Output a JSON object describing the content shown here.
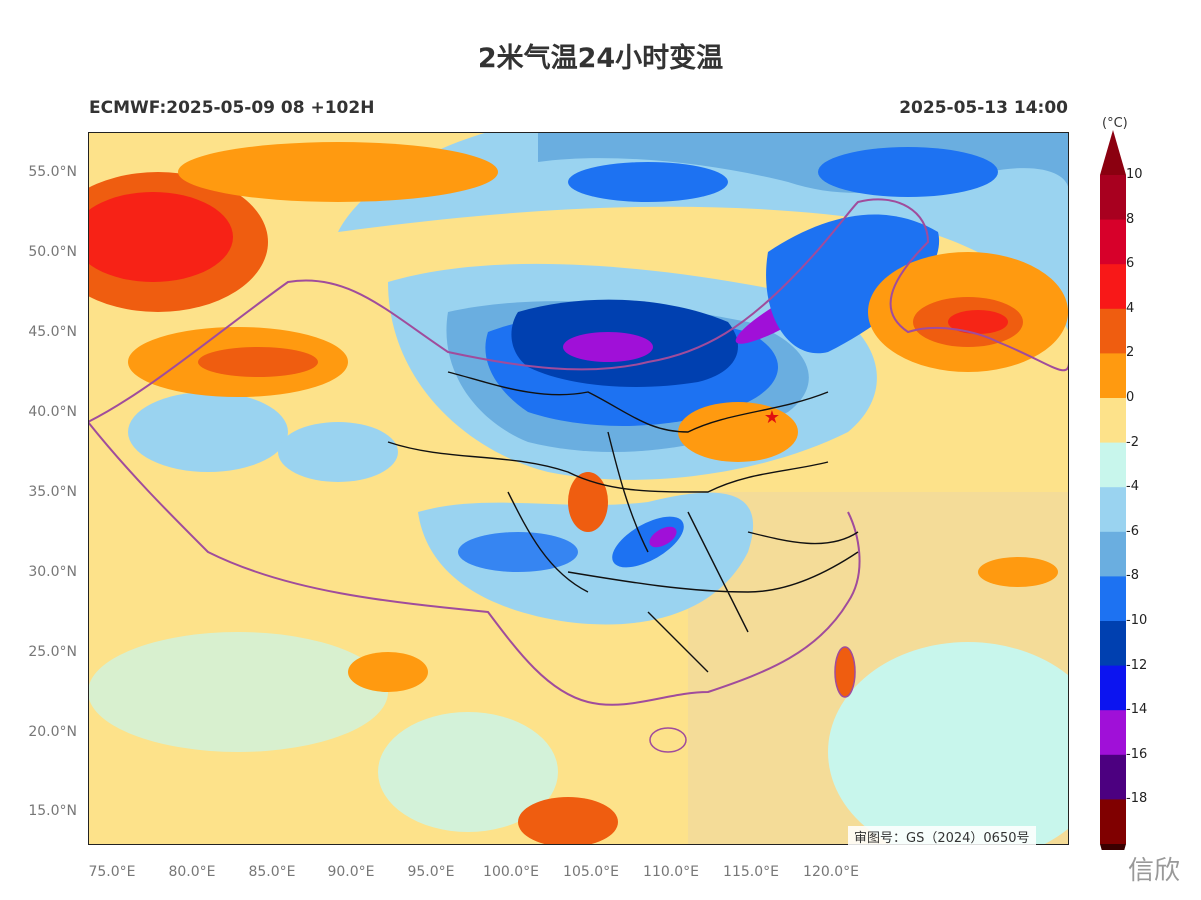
{
  "title": "2米气温24小时变温",
  "subtitle_left": "ECMWF:2025-05-09 08 +102H",
  "subtitle_right": "2025-05-13 14:00",
  "lat_labels": [
    "55.0°N",
    "50.0°N",
    "45.0°N",
    "40.0°N",
    "35.0°N",
    "30.0°N",
    "25.0°N",
    "20.0°N",
    "15.0°N"
  ],
  "lon_labels": [
    "75.0°E",
    "80.0°E",
    "85.0°E",
    "90.0°E",
    "95.0°E",
    "100.0°E",
    "105.0°E",
    "110.0°E",
    "115.0°E",
    "120.0°E"
  ],
  "colorbar": {
    "unit": "(°C)",
    "labels": [
      "10",
      "8",
      "6",
      "4",
      "2",
      "0",
      "-2",
      "-4",
      "-6",
      "-8",
      "-10",
      "-12",
      "-14",
      "-16",
      "-18"
    ],
    "colors": [
      "#a8001f",
      "#d7002a",
      "#f81818",
      "#ef5d10",
      "#ff9a10",
      "#fde28a",
      "#c8f6ec",
      "#9ad3f0",
      "#6aaee0",
      "#1d72f2",
      "#0040b0",
      "#0c14f0",
      "#a010d8",
      "#4c0080",
      "#800000"
    ],
    "top_color": "#8b0010",
    "bottom_color": "#3a0000"
  },
  "watermark": "审图号：GS（2024）0650号",
  "overlay_text": "信欣",
  "map_marker": "red-star-marker"
}
